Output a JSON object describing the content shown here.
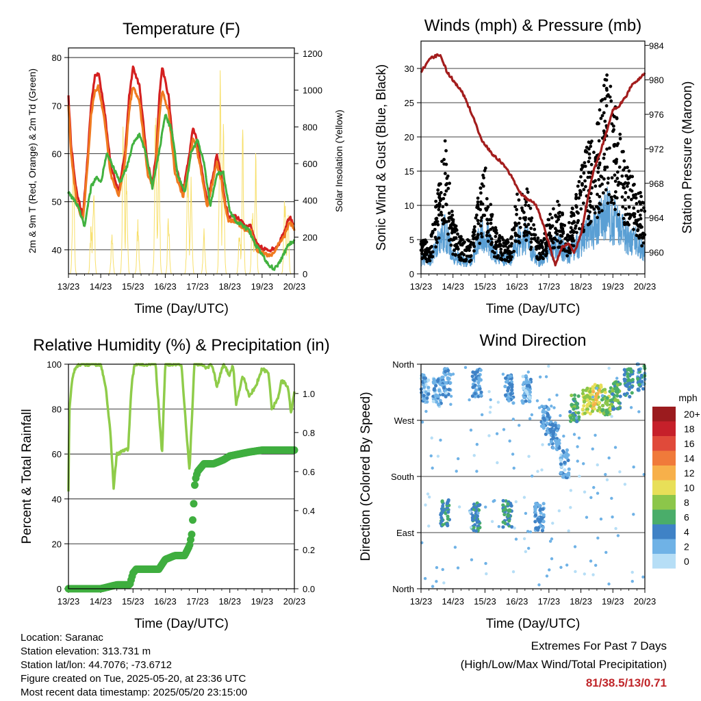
{
  "x_ticks": [
    "13/23",
    "14/23",
    "15/23",
    "16/23",
    "17/23",
    "18/23",
    "19/23",
    "20/23"
  ],
  "footer": {
    "location": "Location: Saranac",
    "elevation": "Station elevation: 313.731 m",
    "latlon": "Station lat/lon: 44.7076; -73.6712",
    "created": "Figure created on Tue, 2025-05-20, at 23:36 UTC",
    "recent": "Most recent data timestamp: 2025/05/20 23:15:00"
  },
  "extremes": {
    "title": "Extremes For Past 7 Days",
    "subtitle": "(High/Low/Max Wind/Total Precipitation)",
    "values": "81/38.5/13/0.71",
    "color": "#c0262a"
  },
  "chart_data": [
    {
      "type": "line",
      "title": "Temperature (F)",
      "xlabel": "Time (Day/UTC)",
      "ylabel": "2m & 9m T (Red, Orange) & 2m Td (Green)",
      "ylabel_right": "Solar Insolation (Yellow)",
      "ylim": [
        35,
        82
      ],
      "ylim_right": [
        0,
        1230
      ],
      "y_ticks": [
        40,
        50,
        60,
        70,
        80
      ],
      "y_ticks_right": [
        0,
        200,
        400,
        600,
        800,
        1000,
        1200
      ],
      "grid": true,
      "x_days": [
        0,
        1,
        2,
        3,
        4,
        5,
        6,
        7
      ],
      "series": [
        {
          "axis": "left",
          "color": "#d42020",
          "x": [
            0,
            0.08,
            0.25,
            0.45,
            0.6,
            0.7,
            0.82,
            0.92,
            1.1,
            1.3,
            1.55,
            1.75,
            1.88,
            2.0,
            2.2,
            2.45,
            2.6,
            2.72,
            2.82,
            2.9,
            3.1,
            3.3,
            3.55,
            3.75,
            3.85,
            3.95,
            4.15,
            4.3,
            4.5,
            4.6,
            4.75,
            4.85,
            4.95,
            5.15,
            5.35,
            5.5,
            5.65,
            5.85,
            6.1,
            6.3,
            6.5,
            6.7,
            6.85,
            7.0
          ],
          "y": [
            72,
            62,
            52,
            47,
            60,
            70,
            76,
            77,
            70,
            58,
            52,
            60,
            72,
            78,
            74,
            58,
            54,
            60,
            72,
            78,
            72,
            58,
            52,
            60,
            65,
            64,
            56,
            50,
            56,
            60,
            55,
            50,
            47,
            47,
            46,
            45,
            45,
            41,
            40,
            40,
            41,
            44,
            47,
            45
          ]
        },
        {
          "axis": "left",
          "color": "#f07a20",
          "x": [
            0,
            0.08,
            0.25,
            0.45,
            0.6,
            0.7,
            0.82,
            0.92,
            1.1,
            1.3,
            1.55,
            1.75,
            1.88,
            2.0,
            2.2,
            2.45,
            2.6,
            2.72,
            2.82,
            2.9,
            3.1,
            3.3,
            3.55,
            3.75,
            3.85,
            3.95,
            4.15,
            4.3,
            4.5,
            4.6,
            4.75,
            4.85,
            4.95,
            5.15,
            5.35,
            5.5,
            5.65,
            5.85,
            6.1,
            6.3,
            6.5,
            6.7,
            6.85,
            7.0
          ],
          "y": [
            70,
            60,
            50,
            46,
            58,
            68,
            73,
            74,
            68,
            56,
            51,
            58,
            69,
            74,
            71,
            56,
            53,
            58,
            68,
            73,
            69,
            56,
            51,
            58,
            63,
            62,
            55,
            49,
            55,
            58,
            54,
            49,
            46,
            46,
            45,
            44,
            44,
            40,
            39,
            39,
            41,
            43,
            46,
            44
          ]
        },
        {
          "axis": "left",
          "color": "#42b240",
          "x": [
            0,
            0.3,
            0.5,
            0.7,
            0.85,
            1.0,
            1.2,
            1.4,
            1.6,
            1.8,
            2.0,
            2.2,
            2.4,
            2.6,
            2.8,
            3.0,
            3.2,
            3.4,
            3.6,
            3.8,
            4.0,
            4.2,
            4.4,
            4.6,
            4.8,
            5.0,
            5.2,
            5.4,
            5.6,
            5.8,
            6.0,
            6.2,
            6.4,
            6.6,
            6.8,
            7.0
          ],
          "y": [
            52,
            49,
            45,
            53,
            55,
            54,
            60,
            57,
            54,
            57,
            62,
            64,
            60,
            53,
            60,
            68,
            65,
            55,
            52,
            60,
            63,
            58,
            49,
            56,
            56,
            48,
            46,
            45,
            44,
            41,
            39,
            37,
            36,
            38,
            41,
            42
          ]
        }
      ],
      "solar_peaks_day": [
        0.15,
        0.7,
        0.78,
        1.35,
        1.7,
        1.8,
        2.15,
        2.7,
        2.8,
        3.1,
        3.7,
        3.8,
        4.2,
        4.7,
        4.8,
        5.3,
        5.4,
        5.7,
        5.8,
        6.7,
        6.8
      ],
      "solar_peaks_value": [
        700,
        300,
        550,
        250,
        950,
        600,
        300,
        950,
        700,
        350,
        700,
        550,
        250,
        1180,
        850,
        300,
        800,
        400,
        700,
        500,
        350
      ],
      "solar_color": "#f7df6a"
    },
    {
      "type": "scatter",
      "title": "Winds (mph) & Pressure (mb)",
      "xlabel": "Time (Day/UTC)",
      "ylabel": "Sonic Wind & Gust (Blue, Black)",
      "ylabel_right": "Station Pressure (Maroon)",
      "ylim": [
        0,
        34
      ],
      "ylim_right": [
        957.5,
        984.5
      ],
      "y_ticks": [
        0,
        5,
        10,
        15,
        20,
        25,
        30
      ],
      "y_ticks_right": [
        960,
        964,
        968,
        972,
        976,
        980,
        984
      ],
      "grid": true,
      "wind_envelope": {
        "x": [
          0,
          0.3,
          0.5,
          0.75,
          1.0,
          1.3,
          1.6,
          1.8,
          2.0,
          2.3,
          2.6,
          2.8,
          3.0,
          3.3,
          3.6,
          3.8,
          4.0,
          4.3,
          4.6,
          4.9,
          5.2,
          5.5,
          5.8,
          6.1,
          6.4,
          6.7,
          7.0
        ],
        "y": [
          3,
          3,
          6,
          9,
          4,
          3,
          3,
          7,
          9,
          4,
          3,
          3,
          7,
          8,
          3,
          3,
          5,
          6,
          4,
          6,
          9,
          10,
          13,
          11,
          8,
          7,
          5
        ],
        "color": "#5a9fd4"
      },
      "gust_envelope": {
        "x": [
          0,
          0.3,
          0.5,
          0.75,
          1.0,
          1.3,
          1.6,
          1.8,
          2.0,
          2.3,
          2.6,
          2.8,
          3.0,
          3.3,
          3.6,
          3.8,
          4.0,
          4.3,
          4.6,
          4.9,
          5.2,
          5.5,
          5.8,
          6.1,
          6.4,
          6.7,
          7.0
        ],
        "y": [
          5,
          5,
          12,
          20,
          8,
          5,
          5,
          12,
          16,
          7,
          5,
          5,
          12,
          13,
          6,
          5,
          9,
          11,
          7,
          13,
          20,
          22,
          30,
          24,
          16,
          14,
          10
        ],
        "color": "#000000"
      },
      "series": [
        {
          "name": "",
          "axis": "right",
          "color": "#a31d1d",
          "x": [
            0,
            0.3,
            0.6,
            0.8,
            1.0,
            1.3,
            1.6,
            1.9,
            2.2,
            2.5,
            2.8,
            3.0,
            3.2,
            3.4,
            3.6,
            3.8,
            4.0,
            4.2,
            4.4,
            4.6,
            4.8,
            5.0,
            5.2,
            5.4,
            5.6,
            5.8,
            6.0,
            6.2,
            6.4,
            6.6,
            6.8,
            7.0
          ],
          "y": [
            981,
            982.5,
            983,
            981,
            980,
            978.5,
            976,
            973,
            971.5,
            970.5,
            969,
            967.5,
            966.5,
            966,
            965.5,
            963.5,
            961,
            958.5,
            960.5,
            961,
            960,
            962,
            966,
            969.5,
            971.5,
            974,
            976.5,
            977,
            978,
            979.5,
            980,
            980.8
          ]
        }
      ]
    },
    {
      "type": "line",
      "title": "Relative Humidity (%) & Precipitation (in)",
      "xlabel": "Time (Day/UTC)",
      "ylabel": "Percent & Total Rainfall",
      "ylim": [
        0,
        100
      ],
      "ylim_right": [
        0,
        1.15
      ],
      "y_ticks": [
        0,
        20,
        40,
        60,
        80,
        100
      ],
      "y_ticks_right": [
        0.0,
        0.2,
        0.4,
        0.6,
        0.8,
        1.0
      ],
      "grid": true,
      "series": [
        {
          "axis": "left",
          "color": "#8fcc4a",
          "x": [
            0,
            0.03,
            0.1,
            0.2,
            0.35,
            0.6,
            0.75,
            1.0,
            1.15,
            1.3,
            1.4,
            1.5,
            1.85,
            1.95,
            2.05,
            2.3,
            2.5,
            2.7,
            2.9,
            3.0,
            3.3,
            3.5,
            3.75,
            3.9,
            4.0,
            4.1,
            4.3,
            4.4,
            4.5,
            4.6,
            4.7,
            4.8,
            5.0,
            5.1,
            5.2,
            5.4,
            5.6,
            5.8,
            6.0,
            6.2,
            6.3,
            6.5,
            6.6,
            6.8,
            6.9,
            7.0
          ],
          "y": [
            44,
            80,
            92,
            98,
            100,
            100,
            100,
            100,
            90,
            70,
            45,
            60,
            62,
            90,
            100,
            100,
            100,
            100,
            60,
            100,
            100,
            100,
            52,
            100,
            100,
            100,
            98,
            100,
            97,
            90,
            95,
            100,
            95,
            100,
            82,
            95,
            86,
            90,
            98,
            96,
            80,
            85,
            93,
            90,
            78,
            88
          ]
        },
        {
          "axis": "right",
          "color": "#3fae3f",
          "x": [
            0,
            0.5,
            1.0,
            1.5,
            1.9,
            2.0,
            2.1,
            2.4,
            2.8,
            3.0,
            3.3,
            3.6,
            3.75,
            3.82,
            3.87,
            3.92,
            4.0,
            4.2,
            4.5,
            4.8,
            5.0,
            5.3,
            5.6,
            6.0,
            6.4,
            6.8,
            7.0
          ],
          "y": [
            0.0,
            0.0,
            0.0,
            0.02,
            0.02,
            0.08,
            0.1,
            0.1,
            0.1,
            0.15,
            0.17,
            0.17,
            0.22,
            0.28,
            0.4,
            0.55,
            0.6,
            0.64,
            0.64,
            0.66,
            0.68,
            0.69,
            0.7,
            0.71,
            0.71,
            0.71,
            0.71
          ]
        }
      ]
    },
    {
      "type": "scatter",
      "title": "Wind Direction",
      "xlabel": "Time (Day/UTC)",
      "ylabel": "Direction (Colored By Speed)",
      "y_ticks": [
        "North",
        "East",
        "South",
        "West",
        "North"
      ],
      "ylim": [
        0,
        360
      ],
      "grid": true,
      "legend": {
        "title": "mph",
        "labels": [
          "20+",
          "18",
          "16",
          "14",
          "12",
          "10",
          "8",
          "6",
          "4",
          "2",
          "0"
        ],
        "colors": [
          "#9b1b1e",
          "#c6202a",
          "#e04a3a",
          "#f07a3a",
          "#f7b04a",
          "#e8df58",
          "#8cc64a",
          "#4aad6a",
          "#3f82c6",
          "#6fb2e6",
          "#b6def6"
        ]
      },
      "clusters": [
        {
          "x": 0.1,
          "dir": 320,
          "speed": 2
        },
        {
          "x": 0.5,
          "dir": 315,
          "speed": 2
        },
        {
          "x": 0.75,
          "dir": 120,
          "speed": 5
        },
        {
          "x": 0.8,
          "dir": 330,
          "speed": 3
        },
        {
          "x": 1.7,
          "dir": 115,
          "speed": 5
        },
        {
          "x": 1.75,
          "dir": 330,
          "speed": 3
        },
        {
          "x": 2.7,
          "dir": 120,
          "speed": 5
        },
        {
          "x": 2.75,
          "dir": 320,
          "speed": 3
        },
        {
          "x": 3.3,
          "dir": 320,
          "speed": 2
        },
        {
          "x": 3.7,
          "dir": 115,
          "speed": 3
        },
        {
          "x": 3.9,
          "dir": 270,
          "speed": 3
        },
        {
          "x": 4.2,
          "dir": 245,
          "speed": 3
        },
        {
          "x": 4.5,
          "dir": 200,
          "speed": 2
        },
        {
          "x": 4.8,
          "dir": 290,
          "speed": 6
        },
        {
          "x": 5.2,
          "dir": 300,
          "speed": 9
        },
        {
          "x": 5.5,
          "dir": 305,
          "speed": 10
        },
        {
          "x": 5.8,
          "dir": 300,
          "speed": 8
        },
        {
          "x": 6.1,
          "dir": 310,
          "speed": 6
        },
        {
          "x": 6.5,
          "dir": 330,
          "speed": 5
        },
        {
          "x": 6.9,
          "dir": 340,
          "speed": 4
        }
      ]
    }
  ]
}
